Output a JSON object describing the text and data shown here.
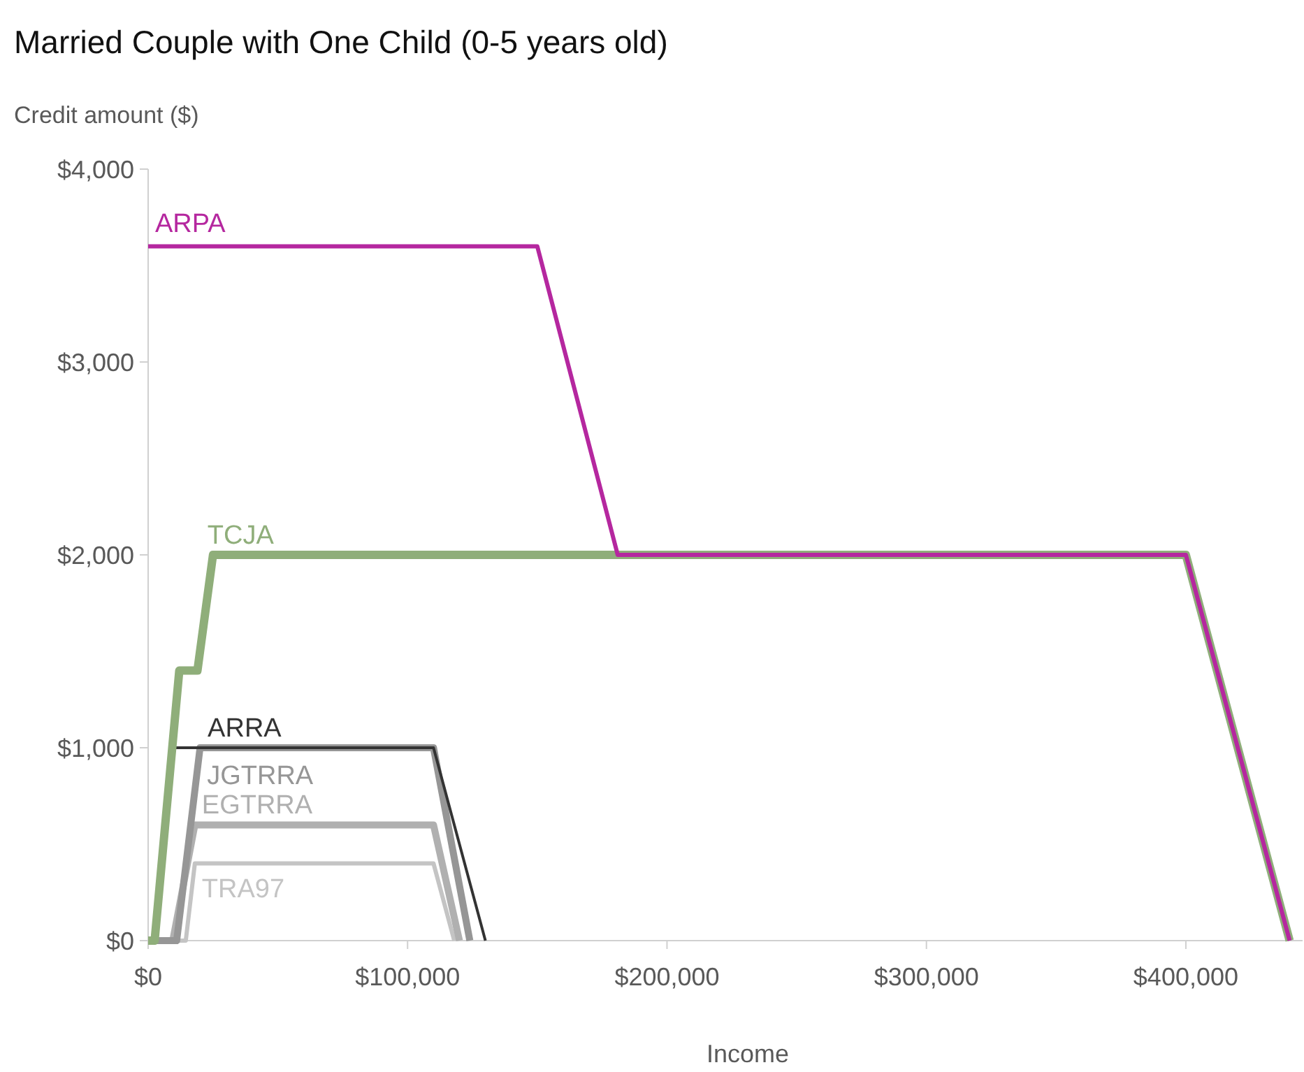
{
  "chart_data": {
    "type": "line",
    "title": "Married Couple with One Child (0-5 years old)",
    "ylabel": "Credit amount ($)",
    "xlabel": "Income",
    "xlim": [
      0,
      445000
    ],
    "ylim": [
      0,
      4000
    ],
    "xticks": [
      {
        "value": 0,
        "label": "$0"
      },
      {
        "value": 100000,
        "label": "$100,000"
      },
      {
        "value": 200000,
        "label": "$200,000"
      },
      {
        "value": 300000,
        "label": "$300,000"
      },
      {
        "value": 400000,
        "label": "$400,000"
      }
    ],
    "yticks": [
      {
        "value": 0,
        "label": "$0"
      },
      {
        "value": 1000,
        "label": "$1,000"
      },
      {
        "value": 2000,
        "label": "$2,000"
      },
      {
        "value": 3000,
        "label": "$3,000"
      },
      {
        "value": 4000,
        "label": "$4,000"
      }
    ],
    "grid": false,
    "marker": "none",
    "line_style": "solid",
    "series": [
      {
        "name": "TRA97",
        "color": "#c4c4c4",
        "x": [
          0,
          14500,
          18000,
          110000,
          118000
        ],
        "values": [
          0,
          0,
          400,
          400,
          0
        ]
      },
      {
        "name": "EGTRRA",
        "color": "#b0b0b0",
        "x": [
          0,
          9500,
          18000,
          110000,
          120000
        ],
        "values": [
          0,
          0,
          600,
          600,
          0
        ]
      },
      {
        "name": "JGTRRA",
        "color": "#969696",
        "x": [
          0,
          11000,
          20000,
          110000,
          124000
        ],
        "values": [
          0,
          0,
          1000,
          1000,
          0
        ]
      },
      {
        "name": "ARRA",
        "color": "#333333",
        "x": [
          0,
          3000,
          10000,
          110000,
          130000
        ],
        "values": [
          0,
          0,
          1000,
          1000,
          0
        ]
      },
      {
        "name": "TCJA",
        "color": "#8fae7a",
        "x": [
          0,
          2500,
          12000,
          19000,
          25000,
          400000,
          440000
        ],
        "values": [
          0,
          0,
          1400,
          1400,
          2000,
          2000,
          0
        ]
      },
      {
        "name": "ARPA",
        "color": "#b5279f",
        "x": [
          0,
          150000,
          181000,
          400000,
          440000
        ],
        "values": [
          3600,
          3600,
          2000,
          2000,
          0
        ]
      }
    ]
  }
}
